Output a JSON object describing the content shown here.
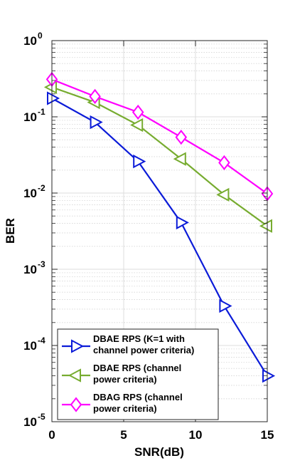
{
  "chart_data": {
    "type": "line",
    "xlabel": "SNR(dB)",
    "ylabel": "BER",
    "xlim": [
      0,
      15
    ],
    "ylim": [
      1e-05,
      1
    ],
    "yscale": "log",
    "xticks": [
      0,
      5,
      10,
      15
    ],
    "xtick_labels": [
      "0",
      "5",
      "10",
      "15"
    ],
    "yticks": [
      1e-05,
      0.0001,
      0.001,
      0.01,
      0.1,
      1
    ],
    "ytick_labels": [
      {
        "base": "10",
        "exp": "-5"
      },
      {
        "base": "10",
        "exp": "-4"
      },
      {
        "base": "10",
        "exp": "-3"
      },
      {
        "base": "10",
        "exp": "-2"
      },
      {
        "base": "10",
        "exp": "-1"
      },
      {
        "base": "10",
        "exp": "0"
      }
    ],
    "grid": true,
    "legend_position": "bottom-left",
    "series": [
      {
        "name": [
          "DBAE RPS (K=1 with",
          "channel power criteria)"
        ],
        "color": "#0b1bd8",
        "marker": "triangle-right",
        "x": [
          0,
          3,
          6,
          9,
          12,
          15
        ],
        "y": [
          0.175,
          0.085,
          0.026,
          0.0041,
          0.00033,
          4e-05
        ]
      },
      {
        "name": [
          "DBAE RPS (channel",
          "power criteria)"
        ],
        "color": "#77ac30",
        "marker": "triangle-left",
        "x": [
          0,
          3,
          6,
          9,
          12,
          15
        ],
        "y": [
          0.245,
          0.155,
          0.078,
          0.028,
          0.0095,
          0.0037
        ]
      },
      {
        "name": [
          "DBAG RPS (channel",
          "power criteria)"
        ],
        "color": "#ff00ff",
        "marker": "diamond",
        "x": [
          0,
          3,
          6,
          9,
          12,
          15
        ],
        "y": [
          0.31,
          0.185,
          0.115,
          0.054,
          0.025,
          0.0098
        ]
      }
    ]
  }
}
